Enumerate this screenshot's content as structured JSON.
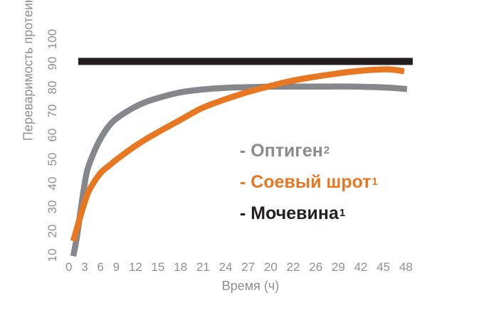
{
  "chart_data": {
    "type": "line",
    "xlabel": "Время (ч)",
    "ylabel": "Переваримость протеина (%)",
    "x_tick_labels": [
      "0",
      "3",
      "6",
      "9",
      "12",
      "15",
      "18",
      "21",
      "24",
      "27",
      "20",
      "22",
      "26",
      "29",
      "42",
      "45",
      "48"
    ],
    "y_tick_labels": [
      "10",
      "20",
      "30",
      "40",
      "50",
      "60",
      "70",
      "80",
      "90",
      "100"
    ],
    "xlim": [
      0,
      48
    ],
    "ylim": [
      10,
      100
    ],
    "grid": false,
    "legend_position": "center-right",
    "series": [
      {
        "name": "Оптиген",
        "sup": "2",
        "color": "#85878a",
        "stroke_width": 8.5,
        "points": [
          [
            0,
            9
          ],
          [
            0.5,
            17
          ],
          [
            1,
            28
          ],
          [
            1.5,
            38
          ],
          [
            2,
            46
          ],
          [
            3,
            54
          ],
          [
            4,
            60
          ],
          [
            5,
            64.5
          ],
          [
            6,
            67.5
          ],
          [
            8,
            71.5
          ],
          [
            10,
            74.5
          ],
          [
            12,
            76.5
          ],
          [
            15,
            78.8
          ],
          [
            18,
            80
          ],
          [
            21,
            80.7
          ],
          [
            24,
            81
          ],
          [
            27,
            81.2
          ],
          [
            30,
            81.3
          ],
          [
            33,
            81.3
          ],
          [
            36,
            81.3
          ],
          [
            39,
            81.3
          ],
          [
            42,
            81.1
          ],
          [
            45,
            80.7
          ],
          [
            46.9,
            80.2
          ]
        ]
      },
      {
        "name": "Соевый шрот",
        "sup": "1",
        "color": "#e87722",
        "stroke_width": 8.5,
        "points": [
          [
            0,
            15.5
          ],
          [
            1,
            26
          ],
          [
            2,
            35.5
          ],
          [
            3,
            41
          ],
          [
            4,
            45
          ],
          [
            5,
            47.5
          ],
          [
            6,
            50
          ],
          [
            8,
            54.5
          ],
          [
            10,
            58.5
          ],
          [
            12,
            62
          ],
          [
            15,
            67
          ],
          [
            18,
            72
          ],
          [
            21,
            75.5
          ],
          [
            24,
            78.5
          ],
          [
            27,
            81
          ],
          [
            30,
            83.3
          ],
          [
            33,
            85
          ],
          [
            36,
            86.4
          ],
          [
            39,
            87.6
          ],
          [
            42,
            88.4
          ],
          [
            44.5,
            88.6
          ],
          [
            46.5,
            87.8
          ]
        ]
      },
      {
        "name": "Мочевина",
        "sup": "1",
        "color": "#231f20",
        "stroke_width": 10,
        "points": [
          [
            0.7,
            92
          ],
          [
            47.7,
            92
          ]
        ]
      }
    ],
    "legend": [
      {
        "label": "- Оптиген",
        "sup": "2",
        "color": "#898b8e"
      },
      {
        "label": "- Соевый шрот",
        "sup": "1",
        "color": "#e87722"
      },
      {
        "label": "- Мочевина",
        "sup": "1",
        "color": "#231f20"
      }
    ]
  },
  "colors": {
    "background": "#ffffff",
    "axis_text": "#8f9194",
    "optigen_gray": "#85878a",
    "soy_orange": "#e87722",
    "urea_black": "#231f20"
  }
}
